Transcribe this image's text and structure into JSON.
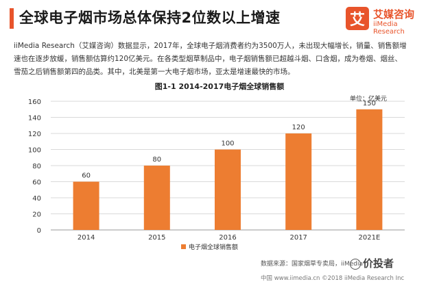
{
  "header": {
    "title": "全球电子烟市场总体保持2位数以上增速",
    "accent_color": "#e8542b"
  },
  "logo": {
    "mark": "艾",
    "cn": "艾媒咨询",
    "en": "iiMedia Research"
  },
  "description": {
    "lines": [
      "iiMedia Research（艾媒咨询）数据显示，2017年，全球电子烟消费者约为3500万人，未出现大幅增长，销量、销售额增",
      "速也在逐步放缓，销售额估算约120亿美元。在各类型烟草制品中，电子烟销售额已超越斗烟、口含烟，成为卷烟、烟丝、",
      "雪茄之后销售额第四的品类。其中，北美是第一大电子烟市场，亚太是增速最快的市场。"
    ]
  },
  "chart_data": {
    "type": "bar",
    "title": "图1-1 2014-2017电子烟全球销售额",
    "unit": "单位：亿美元",
    "categories": [
      "2014",
      "2015",
      "2016",
      "2017",
      "2021E"
    ],
    "series": [
      {
        "name": "电子烟全球销售额",
        "values": [
          60,
          80,
          100,
          120,
          150
        ],
        "color": "#ed7d31"
      }
    ],
    "ylim": [
      0,
      160
    ],
    "yticks": [
      0,
      20,
      40,
      60,
      80,
      100,
      120,
      140,
      160
    ],
    "grid": true,
    "legend": "bottom"
  },
  "footer": {
    "source": "数据来源：国家烟草专卖局，iiMedia",
    "bottom": "中国 www.iimedia.cn   ©2018  iiMedia Research Inc",
    "watermark": "价投者"
  }
}
